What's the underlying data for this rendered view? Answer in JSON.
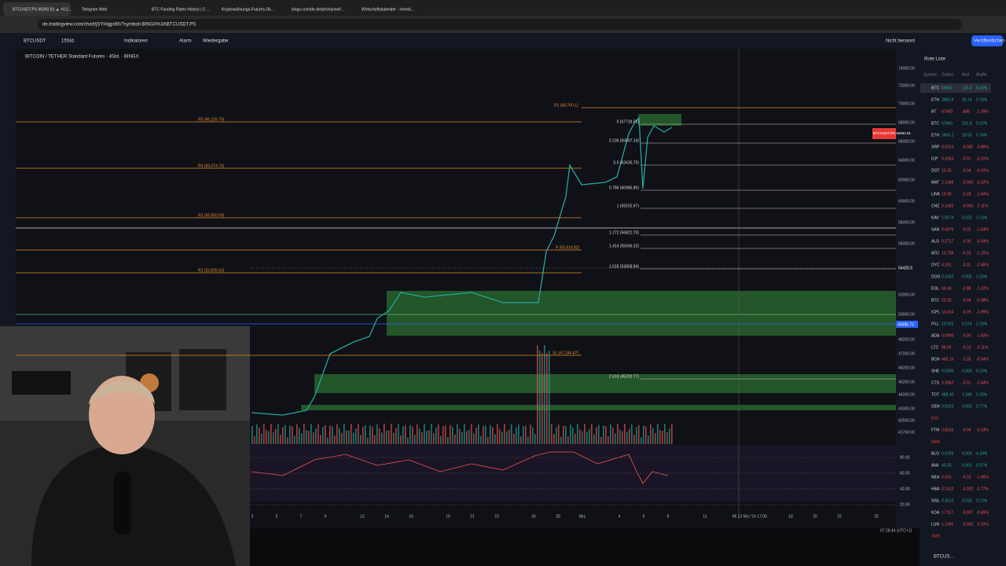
{
  "browser": {
    "tabs": [
      "BTCUSDT.PS 66992.81 ▲ +0.2…",
      "Telegram Web",
      "BTC Funding Rates History | C…",
      "Kryptowährungs-Futures-Ok…",
      "bingx.com/de-de/pt/channel/…",
      "Wirtschaftskalender - Investi…"
    ],
    "url": "de.tradingview.com/chart/jSYHqgo9X/?symbol=BINGX%3ABTCUSDT.PS"
  },
  "toolbar": {
    "symbol": "BTCUSDT",
    "interval": "15Std.",
    "indicators": "Indikatoren",
    "alert": "Alarm",
    "replay": "Wiedergabe",
    "layout": "Nicht benannt",
    "publish": "Veröffentlichen"
  },
  "chart": {
    "title": "BITCOIN / TETHER Standard Futures · 4Std. · BINGX",
    "price_tag": "BTCUSDT.PS 66992.81",
    "blue_tag": "49386.72",
    "cross_tag": "54420.5",
    "pivots": [
      "R1 (68,760.1)",
      "R5 (66,226.79)",
      "R4 (63,474.74)",
      "R3 (58,650.69)",
      "P (55,814.82)",
      "R2 (53,826.63)",
      "S1 (47,244.87)"
    ],
    "fib": [
      "0 (67718.50)",
      "0.236 (65697.14)",
      "0.5 (63435.70)",
      "0.786 (60985.80)",
      "1 (59152.67)",
      "1.272 (56822.70)",
      "1.414 (55606.32)",
      "1.618 (53858.84)",
      "2.618 (45292.77)"
    ],
    "price_axis": [
      "74000.00",
      "72000.00",
      "70000.00",
      "68000.00",
      "66000.00",
      "64000.00",
      "62000.00",
      "60000.00",
      "58000.00",
      "56000.00",
      "52000.00",
      "50000.00",
      "48200.00",
      "47200.00",
      "46200.00",
      "45200.00",
      "44200.00",
      "43300.00",
      "42500.00",
      "41700.00"
    ],
    "rsi_axis": [
      "80.00",
      "60.00",
      "40.00",
      "20.00"
    ],
    "time_axis": [
      "3",
      "5",
      "7",
      "9",
      "12",
      "14",
      "16",
      "19",
      "21",
      "23",
      "26",
      "28",
      "Mrz",
      "4",
      "6",
      "8",
      "11",
      "Mi 13 Mrz '24  17:00",
      "18",
      "20",
      "22",
      "25"
    ],
    "clock": "07:28:44 (UTC+1)"
  },
  "watchlist": {
    "title": "Rote Liste",
    "columns": [
      "Symbol",
      "Zuletzt",
      "Änd",
      "Änd%"
    ],
    "rows": [
      [
        "BTC",
        "66992",
        "135.4",
        "0.20%"
      ],
      [
        "ETH",
        "3900.8",
        "30.14",
        "0.78%"
      ],
      [
        "BT",
        "67490",
        "-885",
        "-1.29%"
      ],
      [
        "BTC",
        "67060",
        "101.5",
        "0.15%"
      ],
      [
        "ETH",
        "3906.2",
        "28.55",
        "0.74%"
      ],
      [
        "XRP",
        "0.6213",
        "-0.005",
        "-0.86%"
      ],
      [
        "ICP",
        "0.3353",
        "-0.01",
        "-3.01%"
      ],
      [
        "DOT",
        "10.35",
        "-0.04",
        "-0.41%"
      ],
      [
        "MAT",
        "1.1568",
        "-0.003",
        "-0.32%"
      ],
      [
        "LINK",
        "19.89",
        "-0.28",
        "-1.40%"
      ],
      [
        "CHZ",
        "0.1482",
        "-0.003",
        "-2.11%"
      ],
      [
        "KAV",
        "1.0574",
        "0.022",
        "2.13%"
      ],
      [
        "SAN",
        "0.6875",
        "-0.01",
        "-1.54%"
      ],
      [
        "ALG",
        "0.2717",
        "-0.00",
        "-0.93%"
      ],
      [
        "ATO",
        "13.738",
        "-0.16",
        "-1.15%"
      ],
      [
        "DYC",
        "4.252",
        "-0.11",
        "-2.66%"
      ],
      [
        "DOG",
        "0.1620",
        "0.005",
        "3.20%"
      ],
      [
        "EGL",
        "66.43",
        "-0.88",
        "-1.32%"
      ],
      [
        "BTC",
        "53.23",
        "-0.04",
        "-0.08%"
      ],
      [
        "ICPL",
        "14.614",
        "-0.29",
        "-1.99%"
      ],
      [
        "FILL",
        "10.025",
        "0.214",
        "2.18%"
      ],
      [
        "ADA",
        "0.0000",
        "-0.00",
        "-1.62%"
      ],
      [
        "LTC",
        "88.05",
        "-0.10",
        "-0.11%"
      ],
      [
        "BCH",
        "450.10",
        "-2.35",
        "-0.04%"
      ],
      [
        "SHE",
        "0.0000",
        "0.000",
        "0.19%"
      ],
      [
        "CTS",
        "0.3842",
        "-0.01",
        "-2.44%"
      ],
      [
        "TOT",
        "688.40",
        "1.345",
        "0.20%"
      ],
      [
        "DEN",
        "0.0022",
        "0.000",
        "0.77%"
      ],
      [
        "ENJ"
      ],
      [
        "FTM",
        "0.8015",
        "-0.04",
        "-0.53%"
      ],
      [
        "MAN"
      ],
      [
        "BLO",
        "0.0025",
        "0.000",
        "4.30%"
      ],
      [
        "AVA",
        "43.05",
        "0.001",
        "0.37%"
      ],
      [
        "NEA",
        "5.413",
        "-0.10",
        "-1.96%"
      ],
      [
        "HBA",
        "0.1312",
        "-0.002",
        "-0.77%"
      ],
      [
        "SISL",
        "0.4513",
        "0.016",
        "3.72%"
      ],
      [
        "KDA",
        "1.7117",
        "-0.007",
        "-0.45%"
      ],
      [
        "LUN",
        "1.1491",
        "-0.002",
        "-0.20%"
      ],
      [
        "XMR"
      ]
    ],
    "footer": "BTCUS…"
  }
}
